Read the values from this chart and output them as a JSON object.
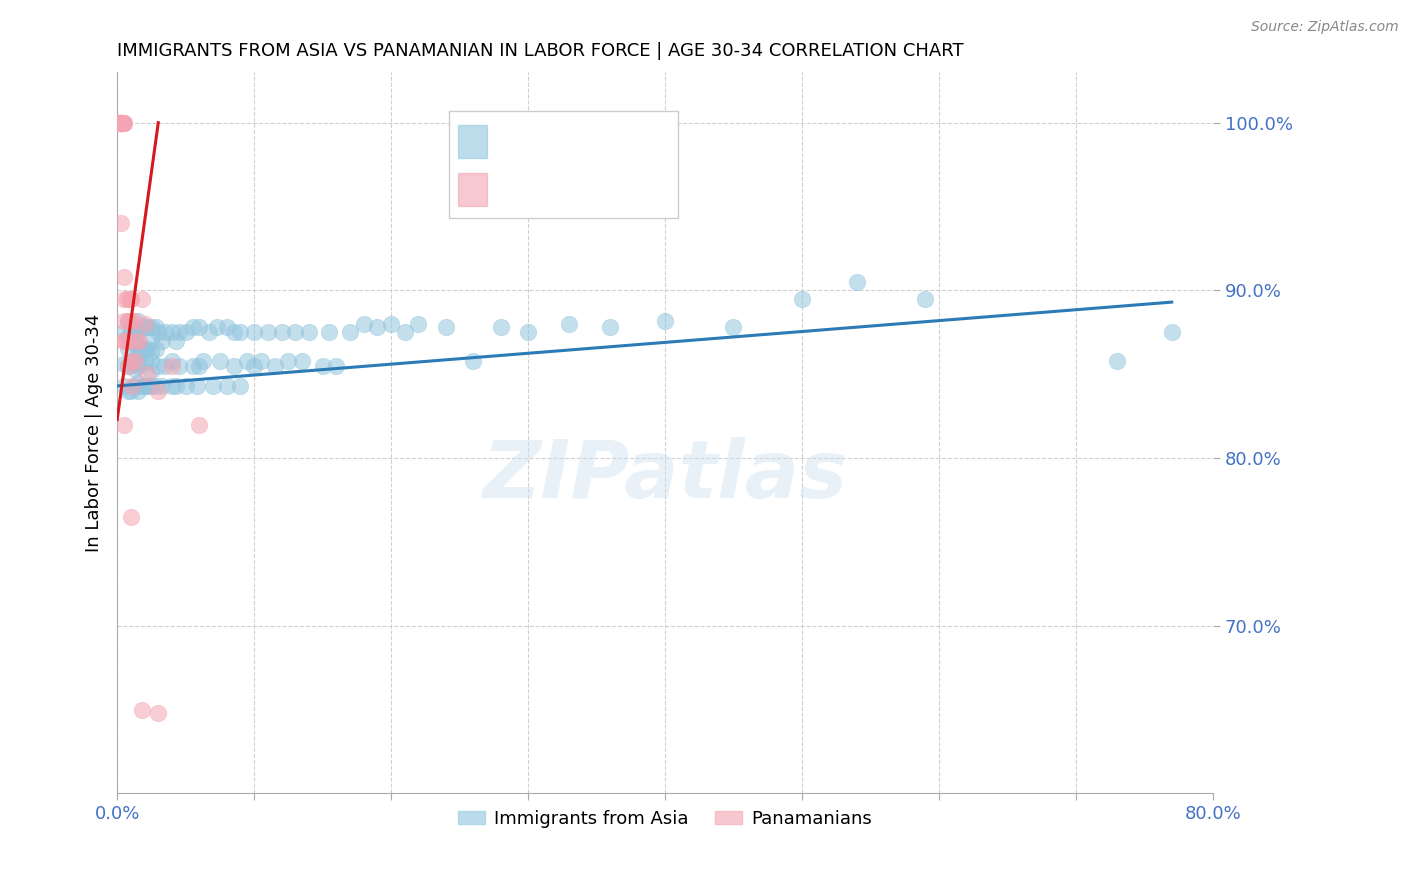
{
  "title": "IMMIGRANTS FROM ASIA VS PANAMANIAN IN LABOR FORCE | AGE 30-34 CORRELATION CHART",
  "source": "Source: ZipAtlas.com",
  "ylabel": "In Labor Force | Age 30-34",
  "xlim": [
    0.0,
    0.8
  ],
  "ylim": [
    0.6,
    1.03
  ],
  "yticks": [
    0.7,
    0.8,
    0.9,
    1.0
  ],
  "ytick_labels": [
    "70.0%",
    "80.0%",
    "90.0%",
    "100.0%"
  ],
  "xticks": [
    0.0,
    0.1,
    0.2,
    0.3,
    0.4,
    0.5,
    0.6,
    0.7,
    0.8
  ],
  "xtick_labels": [
    "0.0%",
    "",
    "",
    "",
    "",
    "",
    "",
    "",
    "80.0%"
  ],
  "color_blue": "#92c5de",
  "color_pink": "#f4a4b2",
  "color_blue_line": "#2c7bb6",
  "color_pink_line": "#d7191c",
  "color_axis_label": "#4472c4",
  "color_ytick": "#4472c4",
  "watermark": "ZIPatlas",
  "blue_x": [
    0.005,
    0.005,
    0.005,
    0.008,
    0.008,
    0.008,
    0.008,
    0.008,
    0.01,
    0.01,
    0.01,
    0.012,
    0.012,
    0.013,
    0.013,
    0.015,
    0.015,
    0.015,
    0.015,
    0.015,
    0.015,
    0.015,
    0.017,
    0.018,
    0.018,
    0.018,
    0.02,
    0.02,
    0.02,
    0.02,
    0.022,
    0.022,
    0.022,
    0.025,
    0.025,
    0.025,
    0.025,
    0.025,
    0.025,
    0.028,
    0.028,
    0.028,
    0.03,
    0.03,
    0.033,
    0.033,
    0.035,
    0.035,
    0.04,
    0.04,
    0.04,
    0.043,
    0.043,
    0.045,
    0.045,
    0.05,
    0.05,
    0.055,
    0.055,
    0.058,
    0.06,
    0.06,
    0.063,
    0.067,
    0.07,
    0.073,
    0.075,
    0.08,
    0.08,
    0.085,
    0.085,
    0.09,
    0.09,
    0.095,
    0.1,
    0.1,
    0.105,
    0.11,
    0.115,
    0.12,
    0.125,
    0.13,
    0.135,
    0.14,
    0.15,
    0.155,
    0.16,
    0.17,
    0.18,
    0.19,
    0.2,
    0.21,
    0.22,
    0.24,
    0.26,
    0.28,
    0.3,
    0.33,
    0.36,
    0.4,
    0.45,
    0.5,
    0.54,
    0.59,
    0.73,
    0.77
  ],
  "blue_y": [
    0.843,
    0.856,
    0.875,
    0.84,
    0.855,
    0.865,
    0.872,
    0.882,
    0.84,
    0.858,
    0.875,
    0.843,
    0.868,
    0.853,
    0.875,
    0.84,
    0.845,
    0.855,
    0.862,
    0.868,
    0.875,
    0.882,
    0.856,
    0.843,
    0.865,
    0.878,
    0.843,
    0.858,
    0.865,
    0.878,
    0.843,
    0.865,
    0.878,
    0.843,
    0.852,
    0.858,
    0.863,
    0.87,
    0.878,
    0.843,
    0.865,
    0.878,
    0.855,
    0.875,
    0.843,
    0.87,
    0.855,
    0.875,
    0.843,
    0.858,
    0.875,
    0.843,
    0.87,
    0.855,
    0.875,
    0.843,
    0.875,
    0.855,
    0.878,
    0.843,
    0.855,
    0.878,
    0.858,
    0.875,
    0.843,
    0.878,
    0.858,
    0.843,
    0.878,
    0.855,
    0.875,
    0.843,
    0.875,
    0.858,
    0.855,
    0.875,
    0.858,
    0.875,
    0.855,
    0.875,
    0.858,
    0.875,
    0.858,
    0.875,
    0.855,
    0.875,
    0.855,
    0.875,
    0.88,
    0.878,
    0.88,
    0.875,
    0.88,
    0.878,
    0.858,
    0.878,
    0.875,
    0.88,
    0.878,
    0.882,
    0.878,
    0.895,
    0.905,
    0.895,
    0.858,
    0.875
  ],
  "pink_x": [
    0.0,
    0.0,
    0.0,
    0.0,
    0.0,
    0.0,
    0.0,
    0.0,
    0.0,
    0.0,
    0.002,
    0.002,
    0.002,
    0.002,
    0.002,
    0.002,
    0.002,
    0.002,
    0.002,
    0.002,
    0.003,
    0.003,
    0.003,
    0.003,
    0.003,
    0.004,
    0.004,
    0.004,
    0.005,
    0.005,
    0.005,
    0.005,
    0.005,
    0.005,
    0.007,
    0.007,
    0.008,
    0.008,
    0.009,
    0.01,
    0.01,
    0.01,
    0.011,
    0.012,
    0.013,
    0.014,
    0.016,
    0.018,
    0.02,
    0.022,
    0.03,
    0.04,
    0.06
  ],
  "pink_y": [
    1.0,
    1.0,
    1.0,
    1.0,
    1.0,
    1.0,
    1.0,
    1.0,
    1.0,
    1.0,
    1.0,
    1.0,
    1.0,
    1.0,
    1.0,
    1.0,
    1.0,
    1.0,
    1.0,
    1.0,
    1.0,
    1.0,
    1.0,
    1.0,
    1.0,
    1.0,
    1.0,
    1.0,
    0.87,
    0.882,
    0.895,
    0.908,
    1.0,
    1.0,
    0.87,
    0.895,
    0.855,
    0.882,
    0.895,
    0.858,
    0.882,
    0.895,
    0.843,
    0.882,
    0.858,
    0.87,
    0.87,
    0.895,
    0.88,
    0.85,
    0.84,
    0.855,
    0.82
  ],
  "pink_outlier_x": [
    0.003,
    0.005,
    0.005,
    0.01,
    0.018,
    0.03
  ],
  "pink_outlier_y": [
    0.94,
    0.87,
    0.82,
    0.765,
    0.65,
    0.648
  ],
  "blue_line_x": [
    0.0,
    0.77
  ],
  "blue_line_y": [
    0.843,
    0.893
  ],
  "pink_line_x": [
    0.0,
    0.03
  ],
  "pink_line_y": [
    0.823,
    1.0
  ]
}
